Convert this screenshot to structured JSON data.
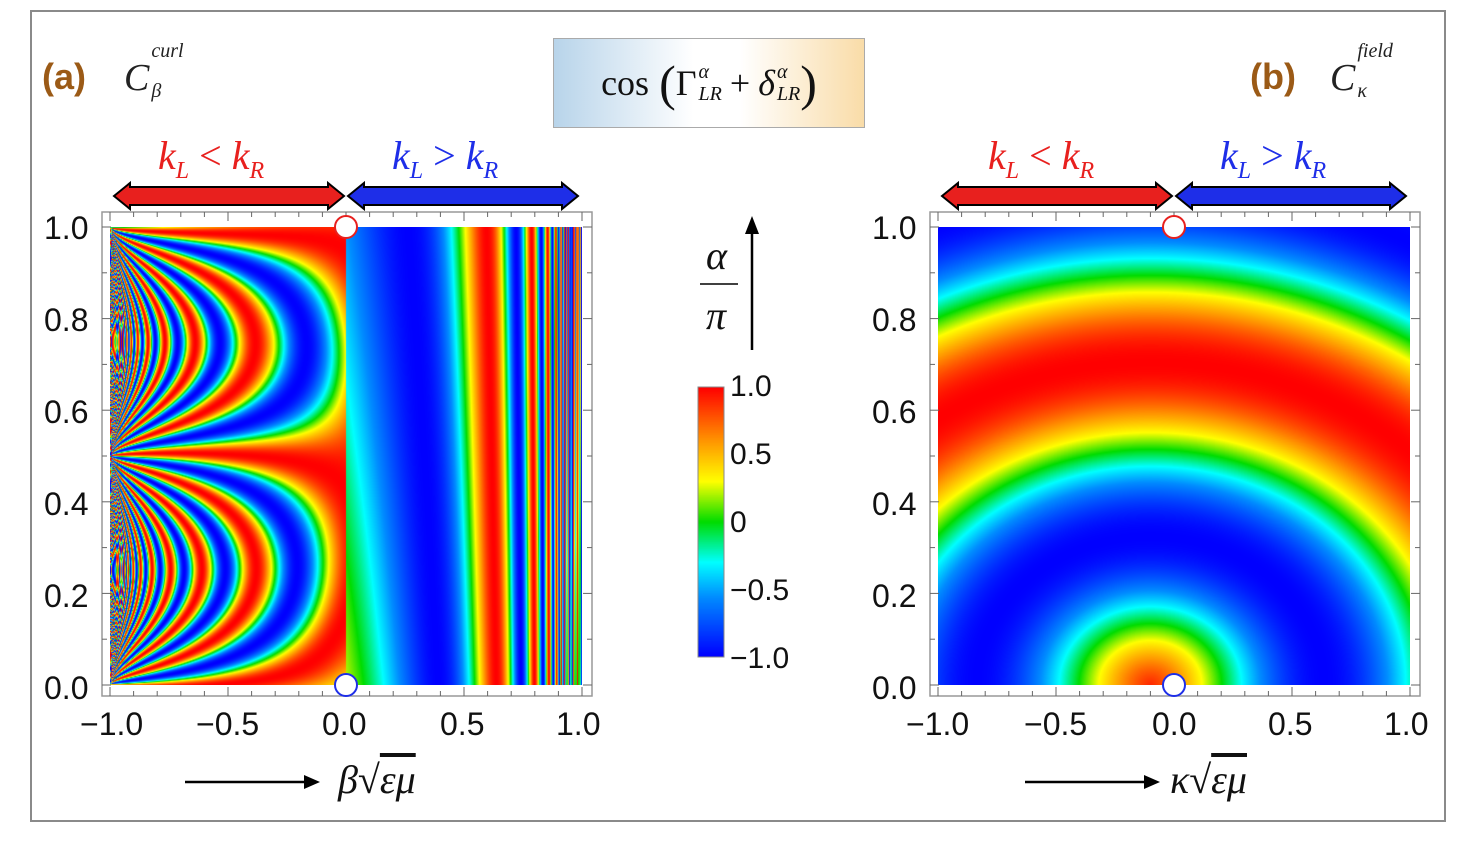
{
  "header": {
    "title": "cos(Γ^α_LR + δ^α_LR)",
    "title_fn": "cos",
    "title_gamma": "Γ",
    "title_delta": "δ",
    "title_plus": "+",
    "title_sup": "α",
    "title_sub": "LR"
  },
  "panels": {
    "a": {
      "label": "(a)",
      "name_main": "C",
      "name_sup": "curl",
      "name_sub": "β",
      "xlabel_main": "β",
      "xlabel_root": "εμ"
    },
    "b": {
      "label": "(b)",
      "name_main": "C",
      "name_sup": "field",
      "name_sub": "κ",
      "xlabel_main": "κ",
      "xlabel_root": "εμ"
    }
  },
  "regions": {
    "left": {
      "text_k": "k",
      "sub_l": "L",
      "op": "<",
      "sub_r": "R",
      "color": "#e8201e"
    },
    "right": {
      "text_k": "k",
      "sub_l": "L",
      "op": ">",
      "sub_r": "R",
      "color": "#1e2ee8"
    }
  },
  "axis": {
    "y_label_top": "α",
    "y_label_bottom": "π",
    "x_ticks": [
      "−1.0",
      "−0.5",
      "0.0",
      "0.5",
      "1.0"
    ],
    "y_ticks": [
      "0.0",
      "0.2",
      "0.4",
      "0.6",
      "0.8",
      "1.0"
    ]
  },
  "colorbar": {
    "labels": [
      "1.0",
      "0.5",
      "0",
      "−0.5",
      "−1.0"
    ],
    "range": [
      -1.0,
      1.0
    ],
    "colors": [
      "#ff0000",
      "#ff9900",
      "#ffff00",
      "#00dd00",
      "#00ffff",
      "#0000ff"
    ]
  },
  "chart_data": [
    {
      "type": "heatmap",
      "title": "(a) C_β^curl",
      "xlabel": "β√(εμ)",
      "ylabel": "α/π",
      "xlim": [
        -1.0,
        1.0
      ],
      "ylim": [
        0.0,
        1.0
      ],
      "zlim": [
        -1.0,
        1.0
      ],
      "markers": [
        {
          "x": 0.0,
          "y": 1.0,
          "color": "red"
        },
        {
          "x": 0.0,
          "y": 0.0,
          "color": "blue"
        }
      ]
    },
    {
      "type": "heatmap",
      "title": "(b) C_κ^field",
      "xlabel": "κ√(εμ)",
      "ylabel": "α/π",
      "xlim": [
        -1.0,
        1.0
      ],
      "ylim": [
        0.0,
        1.0
      ],
      "zlim": [
        -1.0,
        1.0
      ],
      "markers": [
        {
          "x": 0.0,
          "y": 1.0,
          "color": "red"
        },
        {
          "x": 0.0,
          "y": 0.0,
          "color": "blue"
        }
      ]
    }
  ]
}
